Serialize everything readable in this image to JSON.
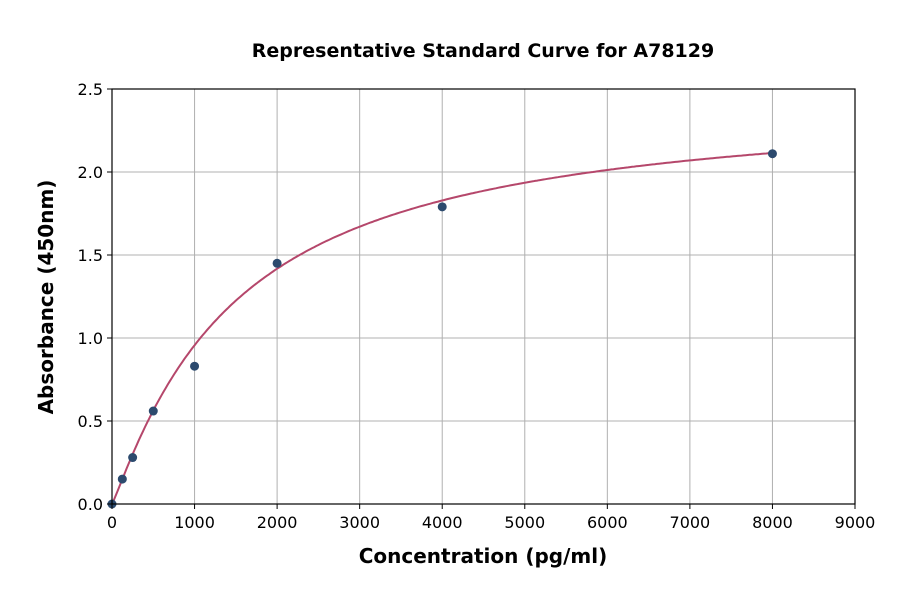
{
  "chart_data": {
    "type": "scatter",
    "title": "Representative Standard Curve for A78129",
    "xlabel": "Concentration (pg/ml)",
    "ylabel": "Absorbance (450nm)",
    "xlim": [
      0,
      9000
    ],
    "ylim": [
      0,
      2.5
    ],
    "xticks": [
      "0",
      "1000",
      "2000",
      "3000",
      "4000",
      "5000",
      "6000",
      "7000",
      "8000",
      "9000"
    ],
    "yticks": [
      "0.0",
      "0.5",
      "1.0",
      "1.5",
      "2.0",
      "2.5"
    ],
    "grid": true,
    "points": [
      {
        "x": 0,
        "y": 0.0
      },
      {
        "x": 125,
        "y": 0.15
      },
      {
        "x": 250,
        "y": 0.28
      },
      {
        "x": 500,
        "y": 0.56
      },
      {
        "x": 1000,
        "y": 0.83
      },
      {
        "x": 2000,
        "y": 1.45
      },
      {
        "x": 4000,
        "y": 1.79
      },
      {
        "x": 8000,
        "y": 2.11
      }
    ],
    "fit_curve": "four-parameter logistic",
    "colors": {
      "points": "#2c4a6e",
      "curve": "#b5476b"
    }
  }
}
